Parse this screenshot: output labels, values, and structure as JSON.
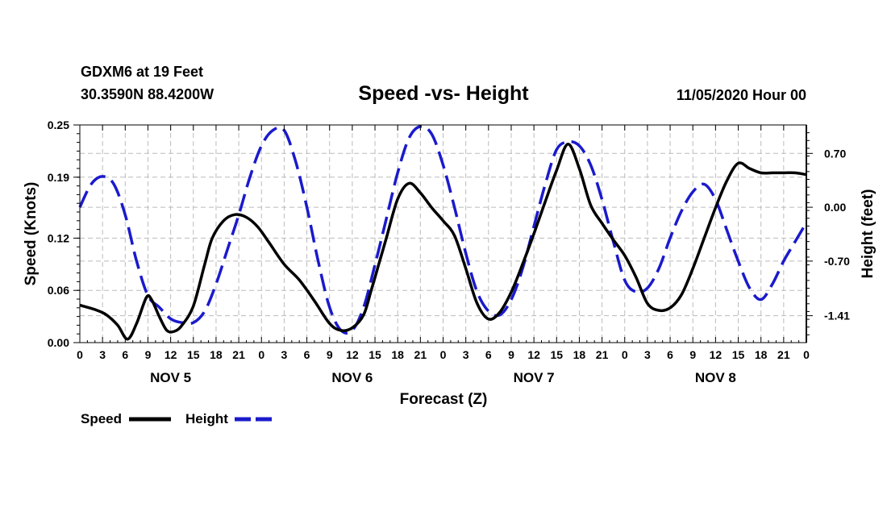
{
  "header": {
    "station": "GDXM6 at 19 Feet",
    "coords": "30.3590N 88.4200W",
    "datetime": "11/05/2020 Hour 00"
  },
  "colors": {
    "speed": "#000000",
    "height": "#1a1acc",
    "grid": "#bbbbbb",
    "axis": "#000000"
  },
  "chart_data": {
    "type": "line",
    "title": "Speed -vs- Height",
    "xlabel": "Forecast (Z)",
    "ylabel_left": "Speed (Knots)",
    "ylabel_right": "Height (feet)",
    "x_unit": "forecast hours from 11/05/2020 00Z",
    "xlim": [
      0,
      96
    ],
    "x_tick_hours": [
      0,
      3,
      6,
      9,
      12,
      15,
      18,
      21,
      24,
      27,
      30,
      33,
      36,
      39,
      42,
      45,
      48,
      51,
      54,
      57,
      60,
      63,
      66,
      69,
      72,
      75,
      78,
      81,
      84,
      87,
      90,
      93,
      96
    ],
    "x_tick_labels": [
      "0",
      "3",
      "6",
      "9",
      "12",
      "15",
      "18",
      "21",
      "0",
      "3",
      "6",
      "9",
      "12",
      "15",
      "18",
      "21",
      "0",
      "3",
      "6",
      "9",
      "12",
      "15",
      "18",
      "21",
      "0",
      "3",
      "6",
      "9",
      "12",
      "15",
      "18",
      "21",
      "0"
    ],
    "day_labels": [
      {
        "hour": 12,
        "label": "NOV 5"
      },
      {
        "hour": 36,
        "label": "NOV 6"
      },
      {
        "hour": 60,
        "label": "NOV 7"
      },
      {
        "hour": 84,
        "label": "NOV 8"
      }
    ],
    "y_left": {
      "range": [
        0,
        0.25
      ],
      "ticks": [
        0,
        0.06,
        0.12,
        0.19,
        0.25
      ],
      "tick_labels": [
        "0.00",
        "0.06",
        "0.12",
        "0.19",
        "0.25"
      ]
    },
    "y_right": {
      "range": [
        -1.76,
        1.07
      ],
      "ticks": [
        -1.41,
        -0.7,
        0.0,
        0.7
      ],
      "tick_labels": [
        "-1.41",
        "-0.70",
        "0.00",
        "0.70"
      ]
    },
    "legend_position": "bottom-left",
    "series": [
      {
        "name": "Speed",
        "axis": "left",
        "style": "solid",
        "x": [
          0,
          2,
          3.5,
          5,
          6.3,
          7.5,
          8.8,
          9.5,
          10.5,
          11.5,
          12.5,
          13.5,
          15,
          16.5,
          17.5,
          19,
          20.5,
          22,
          23.5,
          25,
          27,
          29,
          31,
          33,
          34.5,
          36,
          37.5,
          38.5,
          39.5,
          40.5,
          42,
          43.5,
          45,
          46.5,
          48,
          49.5,
          51,
          52.5,
          54,
          55.5,
          57,
          58.5,
          60,
          61.5,
          63,
          64.5,
          66,
          67.5,
          69,
          70.5,
          72,
          73.5,
          75,
          76.5,
          78,
          79.5,
          81,
          82.5,
          84,
          85.5,
          87,
          88.5,
          90,
          91.5,
          93,
          94.5,
          96
        ],
        "values": [
          0.043,
          0.038,
          0.032,
          0.02,
          0.004,
          0.022,
          0.052,
          0.049,
          0.03,
          0.014,
          0.013,
          0.02,
          0.042,
          0.09,
          0.12,
          0.14,
          0.147,
          0.144,
          0.133,
          0.115,
          0.09,
          0.072,
          0.048,
          0.022,
          0.014,
          0.017,
          0.032,
          0.06,
          0.09,
          0.12,
          0.165,
          0.183,
          0.172,
          0.155,
          0.14,
          0.123,
          0.085,
          0.045,
          0.027,
          0.035,
          0.058,
          0.09,
          0.125,
          0.162,
          0.198,
          0.228,
          0.2,
          0.158,
          0.137,
          0.118,
          0.1,
          0.075,
          0.045,
          0.037,
          0.04,
          0.055,
          0.085,
          0.12,
          0.155,
          0.186,
          0.206,
          0.2,
          0.195,
          0.195,
          0.195,
          0.195,
          0.193
        ]
      },
      {
        "name": "Height",
        "axis": "right",
        "style": "dashed",
        "x": [
          0,
          1.5,
          3,
          4.5,
          6,
          7.5,
          9,
          10.5,
          12,
          13.5,
          15,
          16.5,
          18,
          19.5,
          21,
          22.5,
          24,
          25.5,
          27,
          28.5,
          30,
          31.5,
          33,
          34.5,
          36,
          37.5,
          39,
          40.5,
          42,
          43.5,
          45,
          46.5,
          48,
          49.5,
          51,
          52.5,
          54,
          55.5,
          57,
          58.5,
          60,
          61.5,
          63,
          64.5,
          66,
          67.5,
          69,
          70.5,
          72,
          73.5,
          75,
          76.5,
          78,
          79.5,
          81,
          82.5,
          84,
          85.5,
          87,
          88.5,
          90,
          91.5,
          93,
          94.5,
          96
        ],
        "values": [
          0.0,
          0.3,
          0.4,
          0.3,
          -0.1,
          -0.7,
          -1.15,
          -1.3,
          -1.45,
          -1.5,
          -1.5,
          -1.35,
          -1.0,
          -0.55,
          -0.1,
          0.4,
          0.8,
          1.0,
          1.0,
          0.6,
          0.0,
          -0.7,
          -1.3,
          -1.6,
          -1.6,
          -1.3,
          -0.75,
          -0.15,
          0.45,
          0.9,
          1.05,
          0.95,
          0.55,
          0.0,
          -0.6,
          -1.1,
          -1.35,
          -1.4,
          -1.2,
          -0.8,
          -0.25,
          0.3,
          0.75,
          0.85,
          0.8,
          0.55,
          0.1,
          -0.45,
          -0.95,
          -1.1,
          -1.05,
          -0.8,
          -0.4,
          -0.05,
          0.2,
          0.3,
          0.1,
          -0.3,
          -0.7,
          -1.05,
          -1.2,
          -1.0,
          -0.7,
          -0.45,
          -0.2
        ]
      }
    ]
  }
}
